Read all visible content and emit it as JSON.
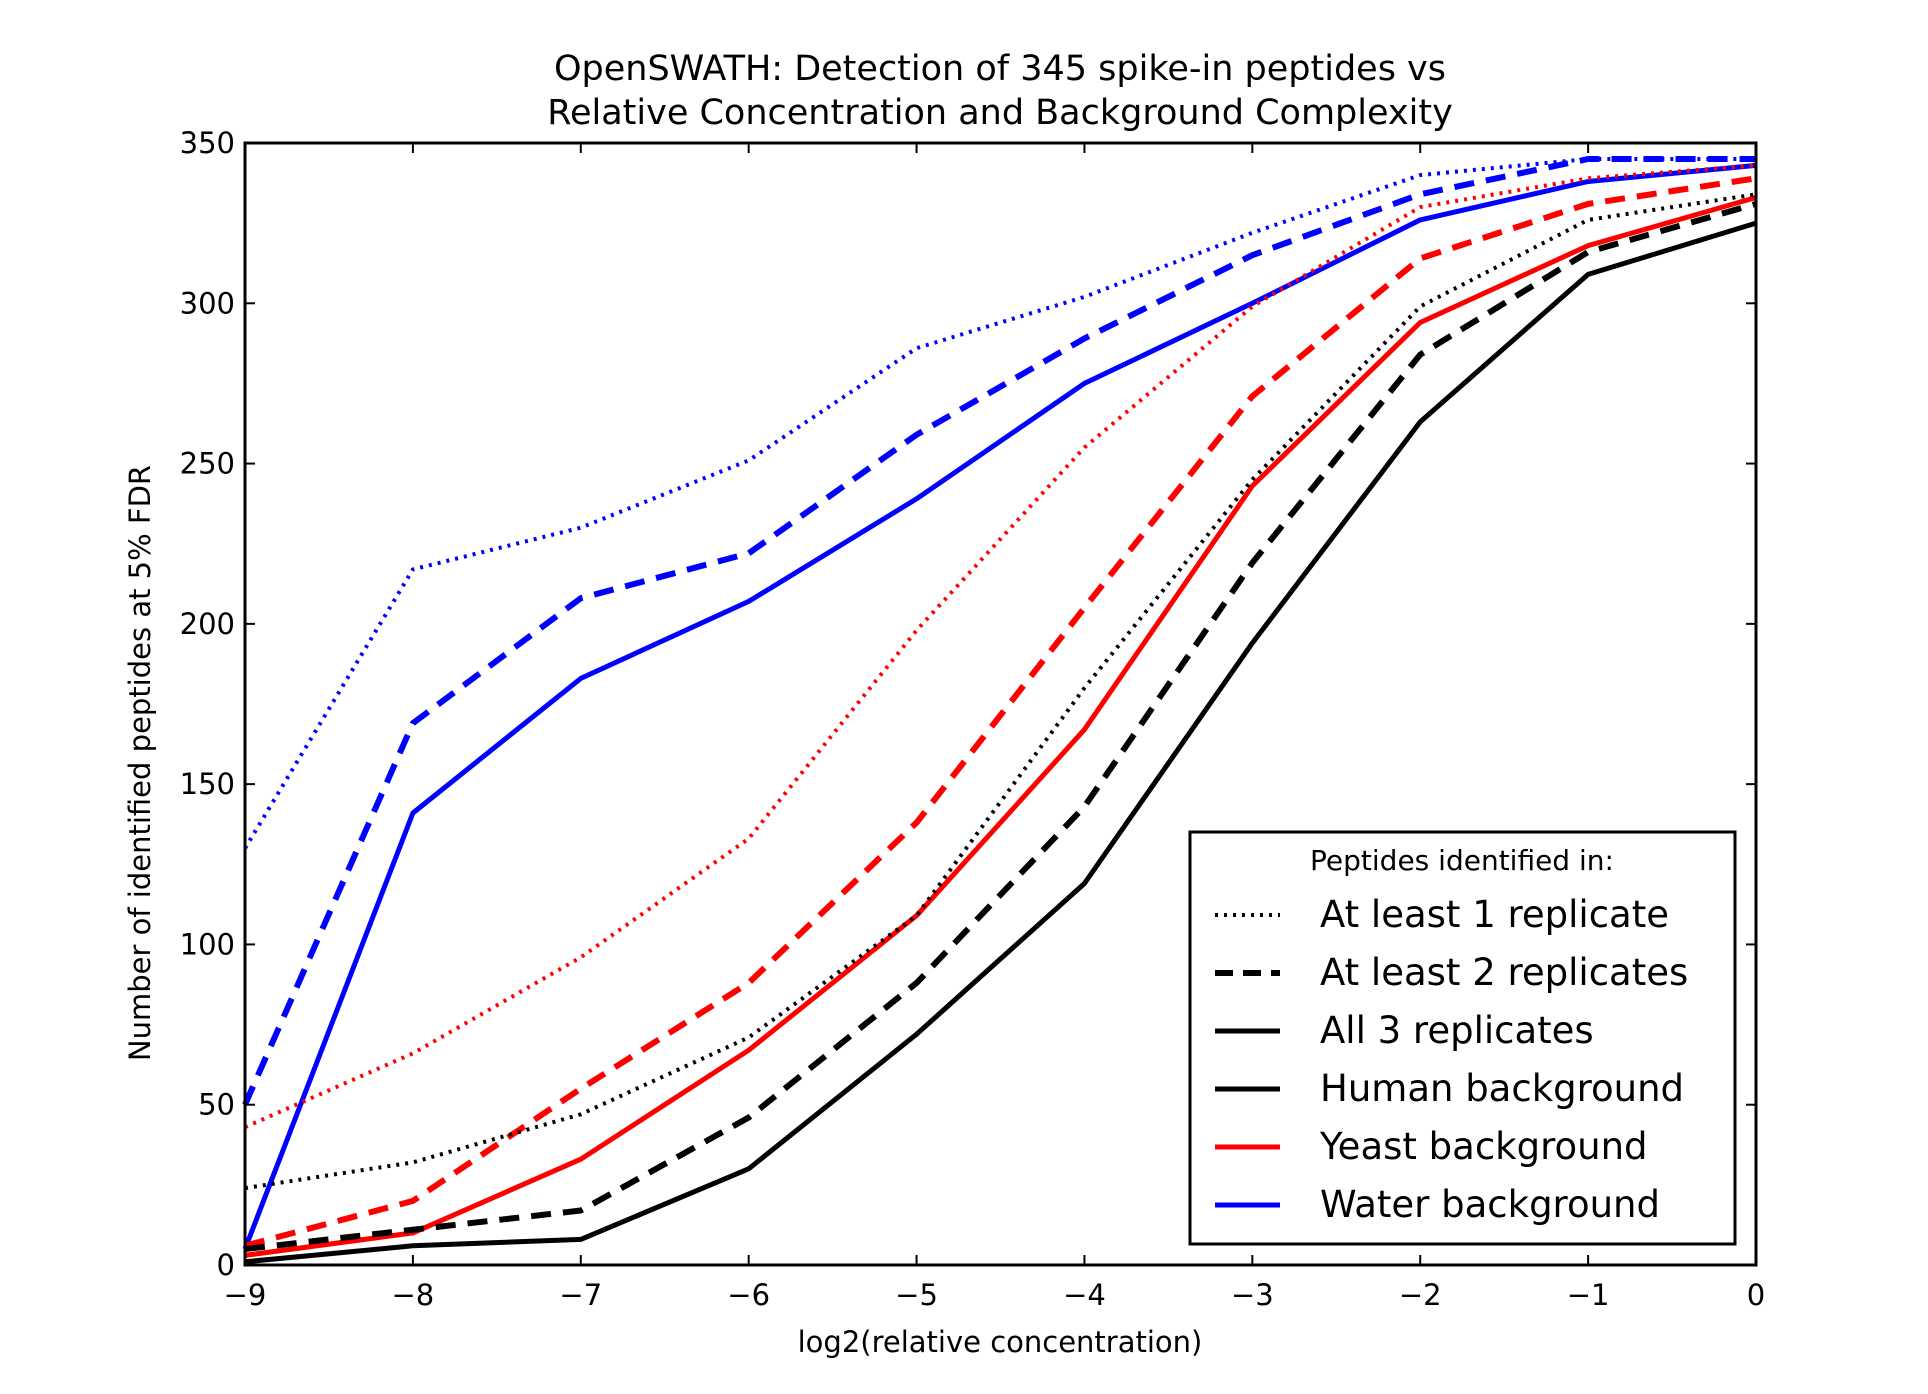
{
  "chart_data": {
    "type": "line",
    "title": "OpenSWATH: Detection of 345 spike-in peptides vs",
    "subtitle": "Relative Concentration and Background Complexity",
    "xlabel": "log2(relative concentration)",
    "ylabel": "Number of identified peptides at 5% FDR",
    "xlim": [
      -9,
      0
    ],
    "ylim": [
      0,
      350
    ],
    "x": [
      -9,
      -8,
      -7,
      -6,
      -5,
      -4,
      -3,
      -2,
      -1,
      0
    ],
    "xticks": [
      "−9",
      "−8",
      "−7",
      "−6",
      "−5",
      "−4",
      "−3",
      "−2",
      "−1",
      "0"
    ],
    "yticks": [
      "0",
      "50",
      "100",
      "150",
      "200",
      "250",
      "300",
      "350"
    ],
    "grid": false,
    "legend_position": "lower-right",
    "legend": {
      "title": "Peptides identified in:",
      "entries": [
        {
          "label": "At least 1 replicate",
          "color": "#000000",
          "style": "dotted"
        },
        {
          "label": "At least 2 replicates",
          "color": "#000000",
          "style": "dashed"
        },
        {
          "label": "All 3 replicates",
          "color": "#000000",
          "style": "solid"
        },
        {
          "label": "Human background",
          "color": "#000000",
          "style": "solid"
        },
        {
          "label": "Yeast background",
          "color": "#ff0000",
          "style": "solid"
        },
        {
          "label": "Water background",
          "color": "#0000ff",
          "style": "solid"
        }
      ]
    },
    "series": [
      {
        "background": "water",
        "replicates": "at least 1",
        "color": "#0000ff",
        "style": "dotted",
        "values": [
          130,
          217,
          230,
          251,
          286,
          302,
          322,
          340,
          345,
          345
        ]
      },
      {
        "background": "water",
        "replicates": "at least 2",
        "color": "#0000ff",
        "style": "dashed",
        "values": [
          50,
          169,
          208,
          222,
          259,
          289,
          315,
          334,
          345,
          345
        ]
      },
      {
        "background": "water",
        "replicates": "all 3",
        "color": "#0000ff",
        "style": "solid",
        "values": [
          5,
          141,
          183,
          207,
          239,
          275,
          300,
          326,
          338,
          343
        ]
      },
      {
        "background": "yeast",
        "replicates": "at least 1",
        "color": "#ff0000",
        "style": "dotted",
        "values": [
          43,
          66,
          96,
          133,
          198,
          255,
          299,
          330,
          339,
          343
        ]
      },
      {
        "background": "yeast",
        "replicates": "at least 2",
        "color": "#ff0000",
        "style": "dashed",
        "values": [
          6,
          20,
          55,
          88,
          138,
          205,
          271,
          314,
          331,
          339
        ]
      },
      {
        "background": "yeast",
        "replicates": "all 3",
        "color": "#ff0000",
        "style": "solid",
        "values": [
          3,
          10,
          33,
          67,
          109,
          167,
          243,
          294,
          318,
          333
        ]
      },
      {
        "background": "human",
        "replicates": "at least 1",
        "color": "#000000",
        "style": "dotted",
        "values": [
          24,
          32,
          47,
          71,
          109,
          180,
          245,
          299,
          326,
          334
        ]
      },
      {
        "background": "human",
        "replicates": "at least 2",
        "color": "#000000",
        "style": "dashed",
        "values": [
          5,
          11,
          17,
          46,
          88,
          143,
          219,
          284,
          316,
          331
        ]
      },
      {
        "background": "human",
        "replicates": "all 3",
        "color": "#000000",
        "style": "solid",
        "values": [
          1,
          6,
          8,
          30,
          72,
          119,
          194,
          263,
          309,
          325
        ]
      }
    ]
  }
}
